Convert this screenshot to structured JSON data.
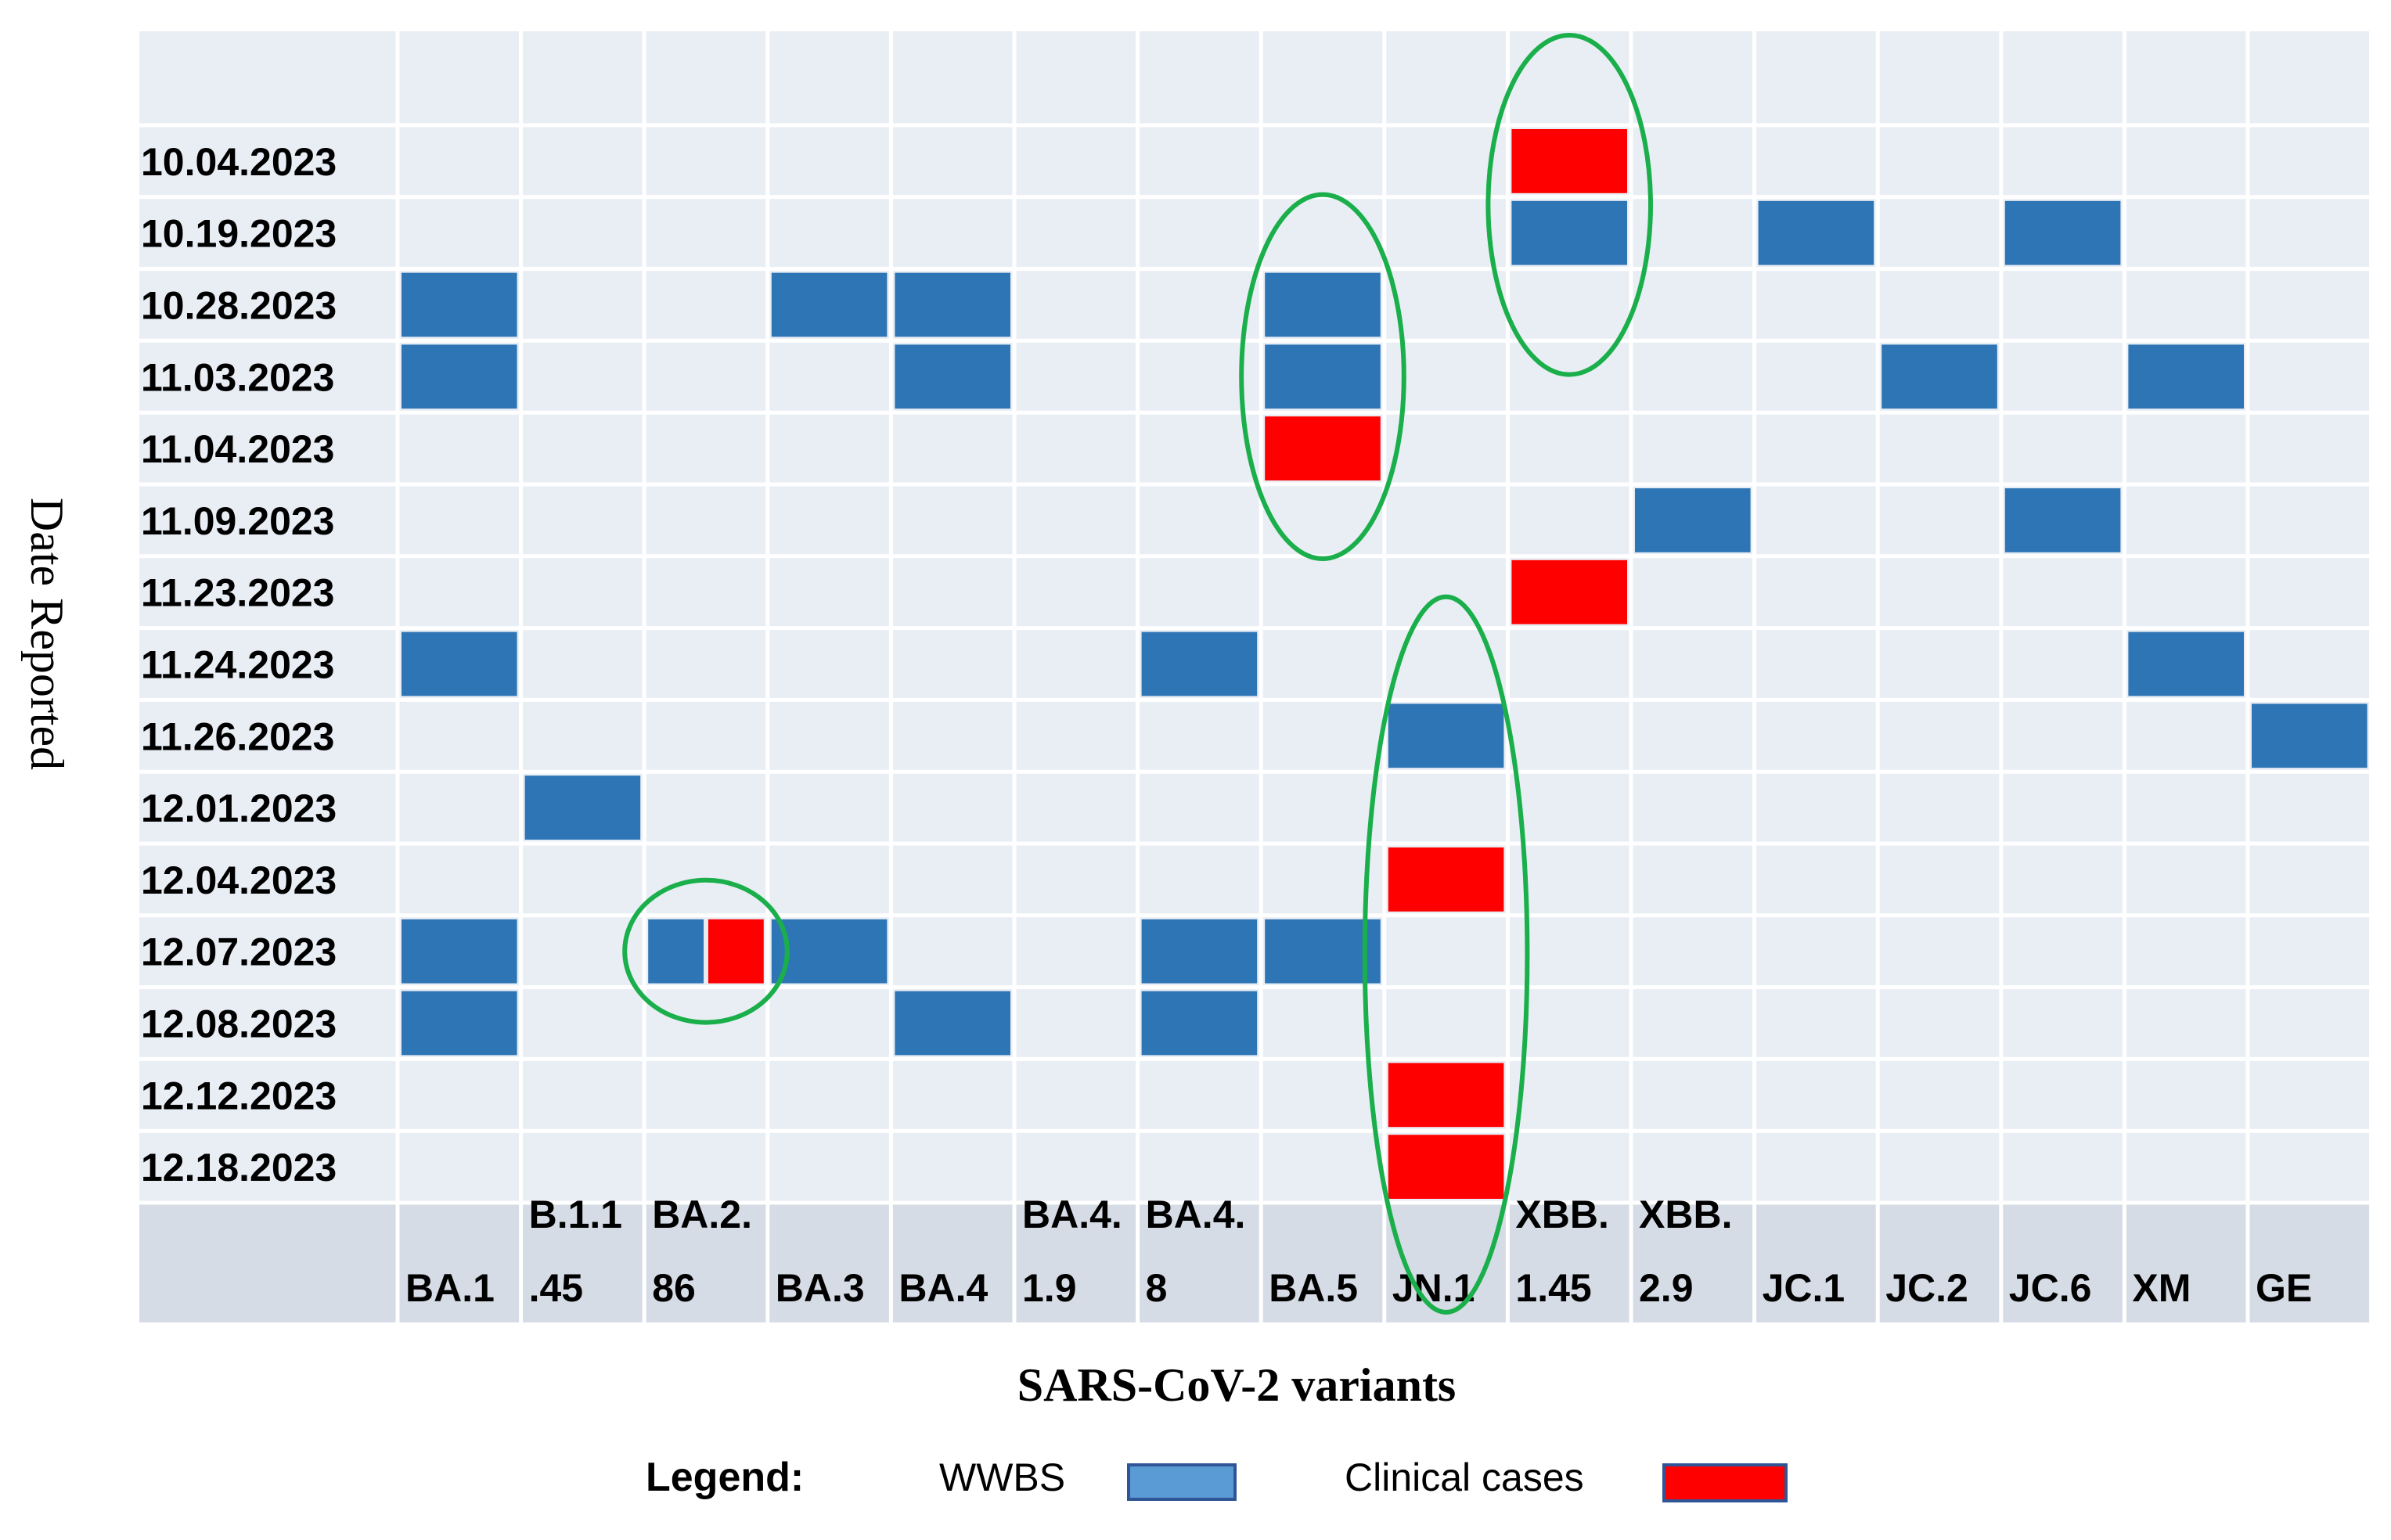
{
  "chart_data": {
    "type": "heatmap",
    "xlabel": "SARS-CoV-2 variants",
    "ylabel": "Date Reported",
    "columns": [
      [
        "BA.1"
      ],
      [
        "B.1.1",
        ".45"
      ],
      [
        "BA.2.",
        "86"
      ],
      [
        "BA.3"
      ],
      [
        "BA.4"
      ],
      [
        "BA.4.",
        "1.9"
      ],
      [
        "BA.4.",
        "8"
      ],
      [
        "BA.5"
      ],
      [
        "JN.1"
      ],
      [
        "XBB.",
        "1.45"
      ],
      [
        "XBB.",
        "2.9"
      ],
      [
        "JC.1"
      ],
      [
        "JC.2"
      ],
      [
        "JC.6"
      ],
      [
        "XM"
      ],
      [
        "GE"
      ]
    ],
    "rows": [
      "10.04.2023",
      "10.19.2023",
      "10.28.2023",
      "11.03.2023",
      "11.04.2023",
      "11.09.2023",
      "11.23.2023",
      "11.24.2023",
      "11.26.2023",
      "12.01.2023",
      "12.04.2023",
      "12.07.2023",
      "12.08.2023",
      "12.12.2023",
      "12.18.2023"
    ],
    "cells": [
      {
        "row": "10.04.2023",
        "variant": "XBB.1.45",
        "type": "clinical"
      },
      {
        "row": "10.19.2023",
        "variant": "XBB.1.45",
        "type": "wwbs"
      },
      {
        "row": "10.19.2023",
        "variant": "JC.1",
        "type": "wwbs"
      },
      {
        "row": "10.19.2023",
        "variant": "JC.6",
        "type": "wwbs"
      },
      {
        "row": "10.28.2023",
        "variant": "BA.1",
        "type": "wwbs"
      },
      {
        "row": "10.28.2023",
        "variant": "BA.3",
        "type": "wwbs"
      },
      {
        "row": "10.28.2023",
        "variant": "BA.4",
        "type": "wwbs"
      },
      {
        "row": "10.28.2023",
        "variant": "BA.5",
        "type": "wwbs"
      },
      {
        "row": "11.03.2023",
        "variant": "BA.1",
        "type": "wwbs"
      },
      {
        "row": "11.03.2023",
        "variant": "BA.4",
        "type": "wwbs"
      },
      {
        "row": "11.03.2023",
        "variant": "BA.5",
        "type": "wwbs"
      },
      {
        "row": "11.03.2023",
        "variant": "JC.2",
        "type": "wwbs"
      },
      {
        "row": "11.03.2023",
        "variant": "XM",
        "type": "wwbs"
      },
      {
        "row": "11.04.2023",
        "variant": "BA.5",
        "type": "clinical"
      },
      {
        "row": "11.09.2023",
        "variant": "XBB.2.9",
        "type": "wwbs"
      },
      {
        "row": "11.09.2023",
        "variant": "JC.6",
        "type": "wwbs"
      },
      {
        "row": "11.23.2023",
        "variant": "XBB.1.45",
        "type": "clinical"
      },
      {
        "row": "11.24.2023",
        "variant": "BA.1",
        "type": "wwbs"
      },
      {
        "row": "11.24.2023",
        "variant": "BA.4.8",
        "type": "wwbs"
      },
      {
        "row": "11.24.2023",
        "variant": "XM",
        "type": "wwbs"
      },
      {
        "row": "11.26.2023",
        "variant": "JN.1",
        "type": "wwbs"
      },
      {
        "row": "11.26.2023",
        "variant": "GE",
        "type": "wwbs"
      },
      {
        "row": "12.01.2023",
        "variant": "B.1.1.45",
        "type": "wwbs"
      },
      {
        "row": "12.04.2023",
        "variant": "JN.1",
        "type": "clinical"
      },
      {
        "row": "12.07.2023",
        "variant": "BA.1",
        "type": "wwbs"
      },
      {
        "row": "12.07.2023",
        "variant": "BA.2.86",
        "type": "wwbs+clinical"
      },
      {
        "row": "12.07.2023",
        "variant": "BA.3",
        "type": "wwbs"
      },
      {
        "row": "12.07.2023",
        "variant": "BA.4.8",
        "type": "wwbs"
      },
      {
        "row": "12.07.2023",
        "variant": "BA.5",
        "type": "wwbs"
      },
      {
        "row": "12.08.2023",
        "variant": "BA.1",
        "type": "wwbs"
      },
      {
        "row": "12.08.2023",
        "variant": "BA.4",
        "type": "wwbs"
      },
      {
        "row": "12.08.2023",
        "variant": "BA.4.8",
        "type": "wwbs"
      },
      {
        "row": "12.12.2023",
        "variant": "JN.1",
        "type": "clinical"
      },
      {
        "row": "12.18.2023",
        "variant": "JN.1",
        "type": "clinical"
      }
    ],
    "highlights": [
      "XBB.1.45",
      "BA.5",
      "JN.1",
      "BA.2.86"
    ],
    "legend": {
      "title": "Legend:",
      "items": [
        {
          "label": "WWBS",
          "color": "#5B9BD5"
        },
        {
          "label": "Clinical cases",
          "color": "#FF0000"
        }
      ]
    },
    "colors": {
      "wwbs": "#2E75B6",
      "clinical": "#FF0000",
      "background": "#E9EEF5",
      "header": "#D6DCE5",
      "highlight_ring": "#1AAF4B"
    }
  }
}
